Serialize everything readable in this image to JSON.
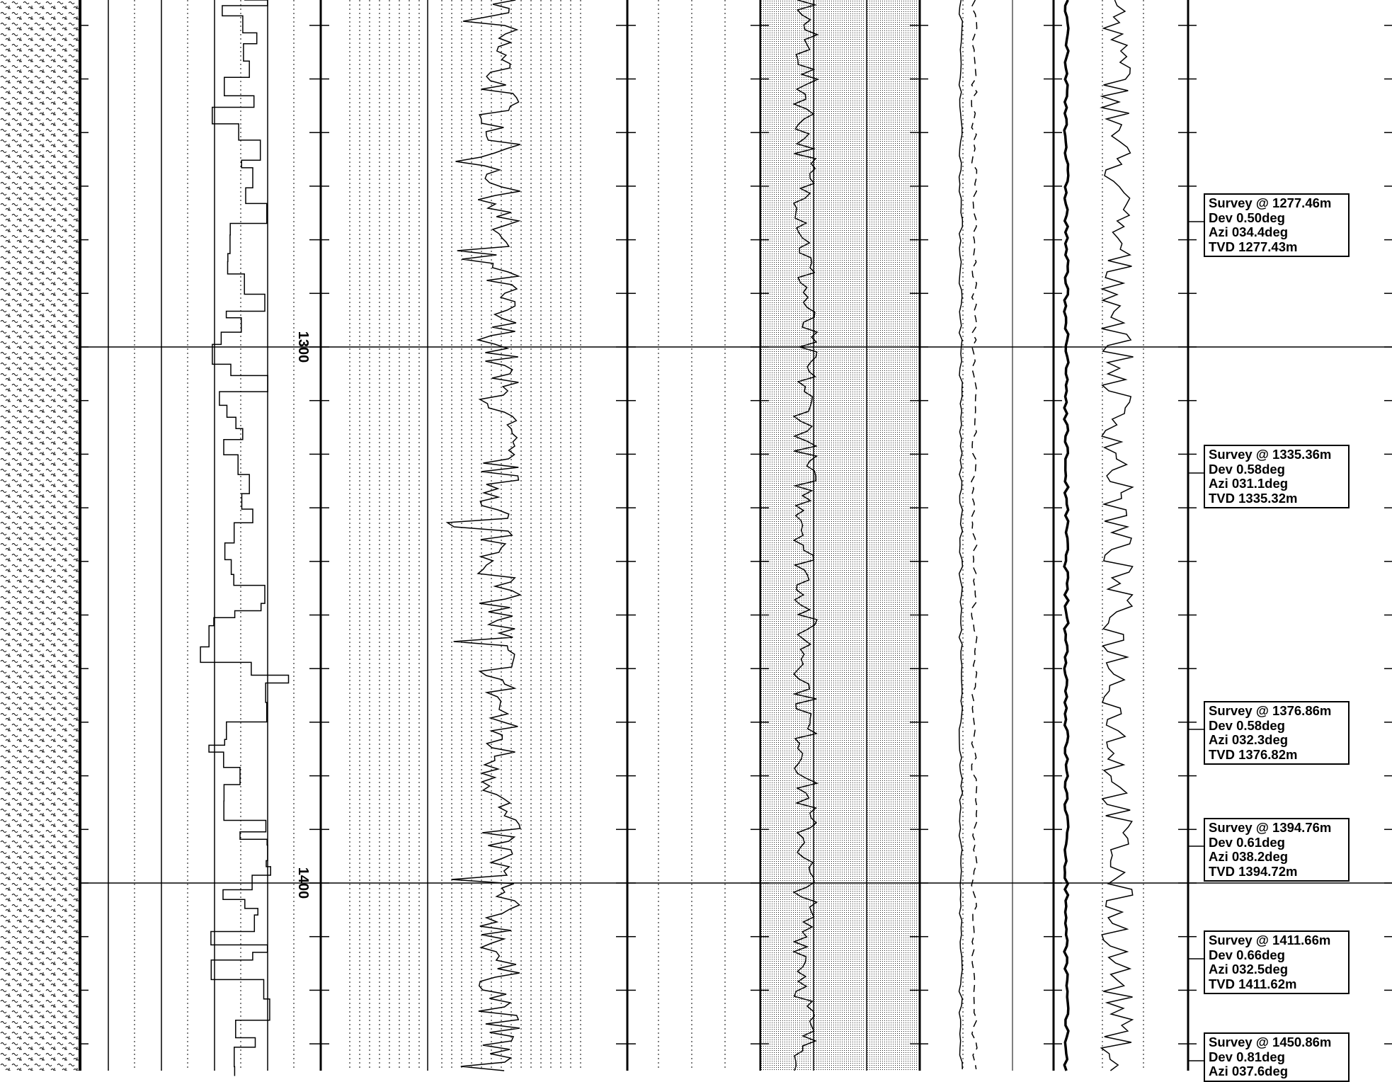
{
  "log": {
    "depth_units": "m",
    "visible_depth_range": [
      1235,
      1435
    ],
    "depth_labels": [
      "1300",
      "1400"
    ],
    "tracks": [
      {
        "name": "lithology",
        "pattern": "shale-sand"
      },
      {
        "name": "track-1",
        "curve": "blocky-log",
        "style": "solid"
      },
      {
        "name": "depth-track"
      },
      {
        "name": "track-2",
        "curve": "gamma-like",
        "style": "solid"
      },
      {
        "name": "track-3",
        "grid": "linear"
      },
      {
        "name": "track-4",
        "curve": "density-like",
        "style": "solid",
        "fill": "stippled"
      },
      {
        "name": "track-5",
        "curves": [
          {
            "style": "solid"
          },
          {
            "style": "dashed"
          }
        ]
      },
      {
        "name": "track-6",
        "curves": [
          {
            "style": "thick-solid"
          },
          {
            "style": "solid"
          }
        ]
      },
      {
        "name": "annotations"
      }
    ]
  },
  "surveys": [
    {
      "title": "Survey @ 1277.46m",
      "dev": "Dev 0.50deg",
      "azi": "Azi 034.4deg",
      "tvd": "TVD 1277.43m",
      "depth": 1277.46
    },
    {
      "title": "Survey @ 1335.36m",
      "dev": "Dev 0.58deg",
      "azi": "Azi 031.1deg",
      "tvd": "TVD 1335.32m",
      "depth": 1335.36
    },
    {
      "title": "Survey @ 1376.86m",
      "dev": "Dev 0.58deg",
      "azi": "Azi 032.3deg",
      "tvd": "TVD 1376.82m",
      "depth": 1376.86
    },
    {
      "title": "Survey @ 1394.76m",
      "dev": "Dev 0.61deg",
      "azi": "Azi 038.2deg",
      "tvd": "TVD 1394.72m",
      "depth": 1394.76
    },
    {
      "title": "Survey @ 1411.66m",
      "dev": "Dev 0.66deg",
      "azi": "Azi 032.5deg",
      "tvd": "TVD 1411.62m",
      "depth": 1411.66
    },
    {
      "title": "Survey @ 1450.86m",
      "dev": "Dev 0.81deg",
      "azi": "Azi 037.6deg",
      "tvd": "",
      "depth": 1450.86
    }
  ],
  "colors": {
    "ink": "#000000",
    "paper": "#ffffff"
  }
}
